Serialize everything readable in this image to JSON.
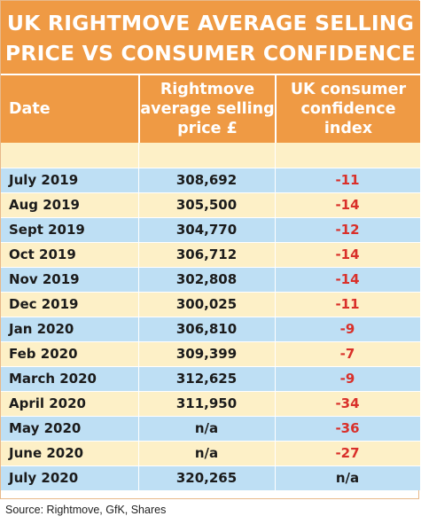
{
  "title_lines": [
    "UK RIGHTMOVE AVERAGE SELLING",
    "PRICE VS CONSUMER CONFIDENCE"
  ],
  "headers": {
    "date": "Date",
    "price_lines": [
      "Rightmove",
      "average selling",
      "price £"
    ],
    "confidence_lines": [
      "UK consumer",
      "confidence",
      "index"
    ]
  },
  "source": "Source: Rightmove, GfK, Shares",
  "colors": {
    "header_orange": "#ef9a44",
    "row_blue": "#bedff4",
    "row_cream": "#fdf0c7",
    "negative_red": "#d9302a"
  },
  "chart_data": {
    "type": "table",
    "columns": [
      "Date",
      "Rightmove average selling price £",
      "UK consumer confidence index"
    ],
    "rows": [
      {
        "date": "July 2019",
        "price": "308,692",
        "confidence": "-11"
      },
      {
        "date": "Aug 2019",
        "price": "305,500",
        "confidence": "-14"
      },
      {
        "date": "Sept 2019",
        "price": "304,770",
        "confidence": "-12"
      },
      {
        "date": "Oct 2019",
        "price": "306,712",
        "confidence": "-14"
      },
      {
        "date": "Nov 2019",
        "price": "302,808",
        "confidence": "-14"
      },
      {
        "date": "Dec 2019",
        "price": "300,025",
        "confidence": "-11"
      },
      {
        "date": "Jan 2020",
        "price": "306,810",
        "confidence": "-9"
      },
      {
        "date": "Feb 2020",
        "price": "309,399",
        "confidence": "-7"
      },
      {
        "date": "March 2020",
        "price": "312,625",
        "confidence": "-9"
      },
      {
        "date": "April 2020",
        "price": "311,950",
        "confidence": "-34"
      },
      {
        "date": "May 2020",
        "price": "n/a",
        "confidence": "-36"
      },
      {
        "date": "June 2020",
        "price": "n/a",
        "confidence": "-27"
      },
      {
        "date": "July 2020",
        "price": "320,265",
        "confidence": "n/a"
      }
    ]
  }
}
